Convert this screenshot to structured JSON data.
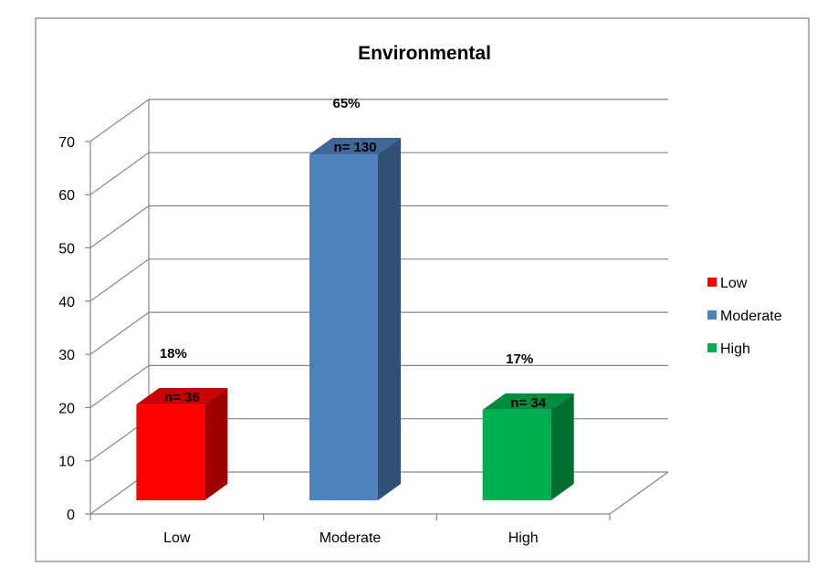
{
  "chart_data": {
    "type": "bar",
    "title": "Environmental",
    "xlabel": "",
    "ylabel": "",
    "categories": [
      "Low",
      "Moderate",
      "High"
    ],
    "values": [
      18,
      65,
      17
    ],
    "percent_labels": [
      "18%",
      "65%",
      "17%"
    ],
    "count_labels": [
      "n= 36",
      "n= 130",
      "n= 34"
    ],
    "colors": [
      "#ff0000",
      "#4f81bd",
      "#00b050"
    ],
    "ylim": [
      0,
      70
    ],
    "yticks": [
      0,
      10,
      20,
      30,
      40,
      50,
      60,
      70
    ],
    "grid": true,
    "three_d": true,
    "legend": {
      "position": "right",
      "entries": [
        {
          "label": "Low",
          "color": "#ff0000"
        },
        {
          "label": "Moderate",
          "color": "#4f81bd"
        },
        {
          "label": "High",
          "color": "#00b050"
        }
      ]
    }
  }
}
